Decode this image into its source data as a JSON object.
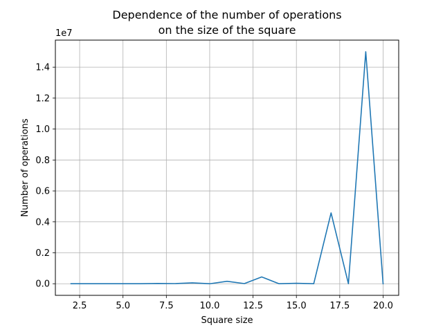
{
  "chart_data": {
    "type": "line",
    "title_line1": "Dependence of the number of operations",
    "title_line2": "on the size of the square",
    "xlabel": "Square size",
    "ylabel": "Number of operations",
    "y_offset_label": "1e7",
    "xlim": [
      1.1,
      20.9
    ],
    "ylim": [
      -0.075,
      1.575
    ],
    "x_ticks": [
      2.5,
      5.0,
      7.5,
      10.0,
      12.5,
      15.0,
      17.5,
      20.0
    ],
    "x_tick_labels": [
      "2.5",
      "5.0",
      "7.5",
      "10.0",
      "12.5",
      "15.0",
      "17.5",
      "20.0"
    ],
    "y_ticks": [
      0.0,
      0.2,
      0.4,
      0.6,
      0.8,
      1.0,
      1.2,
      1.4
    ],
    "y_tick_labels": [
      "0.0",
      "0.2",
      "0.4",
      "0.6",
      "0.8",
      "1.0",
      "1.2",
      "1.4"
    ],
    "grid": true,
    "line_color": "#1f77b4",
    "series": [
      {
        "x": [
          2,
          3,
          4,
          5,
          6,
          7,
          8,
          9,
          10,
          11,
          12,
          13,
          14,
          15,
          16,
          17,
          18,
          19,
          20
        ],
        "values": [
          0.0,
          0.0,
          0.0,
          0.0,
          0.0,
          0.002,
          0.001,
          0.006,
          0.0,
          0.016,
          0.001,
          0.044,
          0.0,
          0.003,
          0.0,
          0.458,
          0.0,
          1.5,
          0.0
        ]
      }
    ]
  }
}
